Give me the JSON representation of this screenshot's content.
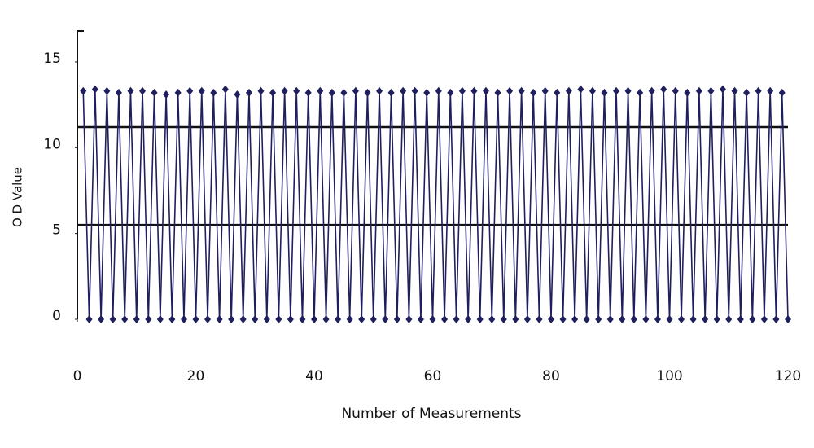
{
  "chart_data": {
    "type": "line",
    "x_label": "Number of Measurements",
    "y_label": "O D Value",
    "x": [
      1,
      2,
      3,
      4,
      5,
      6,
      7,
      8,
      9,
      10,
      11,
      12,
      13,
      14,
      15,
      16,
      17,
      18,
      19,
      20,
      21,
      22,
      23,
      24,
      25,
      26,
      27,
      28,
      29,
      30,
      31,
      32,
      33,
      34,
      35,
      36,
      37,
      38,
      39,
      40,
      41,
      42,
      43,
      44,
      45,
      46,
      47,
      48,
      49,
      50,
      51,
      52,
      53,
      54,
      55,
      56,
      57,
      58,
      59,
      60,
      61,
      62,
      63,
      64,
      65,
      66,
      67,
      68,
      69,
      70,
      71,
      72,
      73,
      74,
      75,
      76,
      77,
      78,
      79,
      80,
      81,
      82,
      83,
      84,
      85,
      86,
      87,
      88,
      89,
      90,
      91,
      92,
      93,
      94,
      95,
      96,
      97,
      98,
      99,
      100,
      101,
      102,
      103,
      104,
      105,
      106,
      107,
      108,
      109,
      110,
      111,
      112,
      113,
      114,
      115,
      116,
      117,
      118,
      119,
      120
    ],
    "series": [
      {
        "color": "#1f1f5e",
        "values": [
          13.3,
          0,
          13.4,
          0,
          13.3,
          0,
          13.2,
          0,
          13.3,
          0,
          13.3,
          0,
          13.2,
          0,
          13.1,
          0,
          13.2,
          0,
          13.3,
          0,
          13.3,
          0,
          13.2,
          0,
          13.4,
          0,
          13.1,
          0,
          13.2,
          0,
          13.3,
          0,
          13.2,
          0,
          13.3,
          0,
          13.3,
          0,
          13.2,
          0,
          13.3,
          0,
          13.2,
          0,
          13.2,
          0,
          13.3,
          0,
          13.2,
          0,
          13.3,
          0,
          13.2,
          0,
          13.3,
          0,
          13.3,
          0,
          13.2,
          0,
          13.3,
          0,
          13.2,
          0,
          13.3,
          0,
          13.3,
          0,
          13.3,
          0,
          13.2,
          0,
          13.3,
          0,
          13.3,
          0,
          13.2,
          0,
          13.3,
          0,
          13.2,
          0,
          13.3,
          0,
          13.4,
          0,
          13.3,
          0,
          13.2,
          0,
          13.3,
          0,
          13.3,
          0,
          13.2,
          0,
          13.3,
          0,
          13.4,
          0,
          13.3,
          0,
          13.2,
          0,
          13.3,
          0,
          13.3,
          0,
          13.4,
          0,
          13.3,
          0,
          13.2,
          0,
          13.3,
          0,
          13.3,
          0,
          13.2,
          0
        ]
      }
    ],
    "reference_lines": [
      11.2,
      5.5
    ],
    "reference_color": "#111111",
    "xlim": [
      0,
      120
    ],
    "xticks": [
      0,
      20,
      40,
      60,
      80,
      100,
      120
    ],
    "ylim": [
      0,
      16.8
    ],
    "yticks": [
      0,
      5,
      10,
      15
    ]
  }
}
